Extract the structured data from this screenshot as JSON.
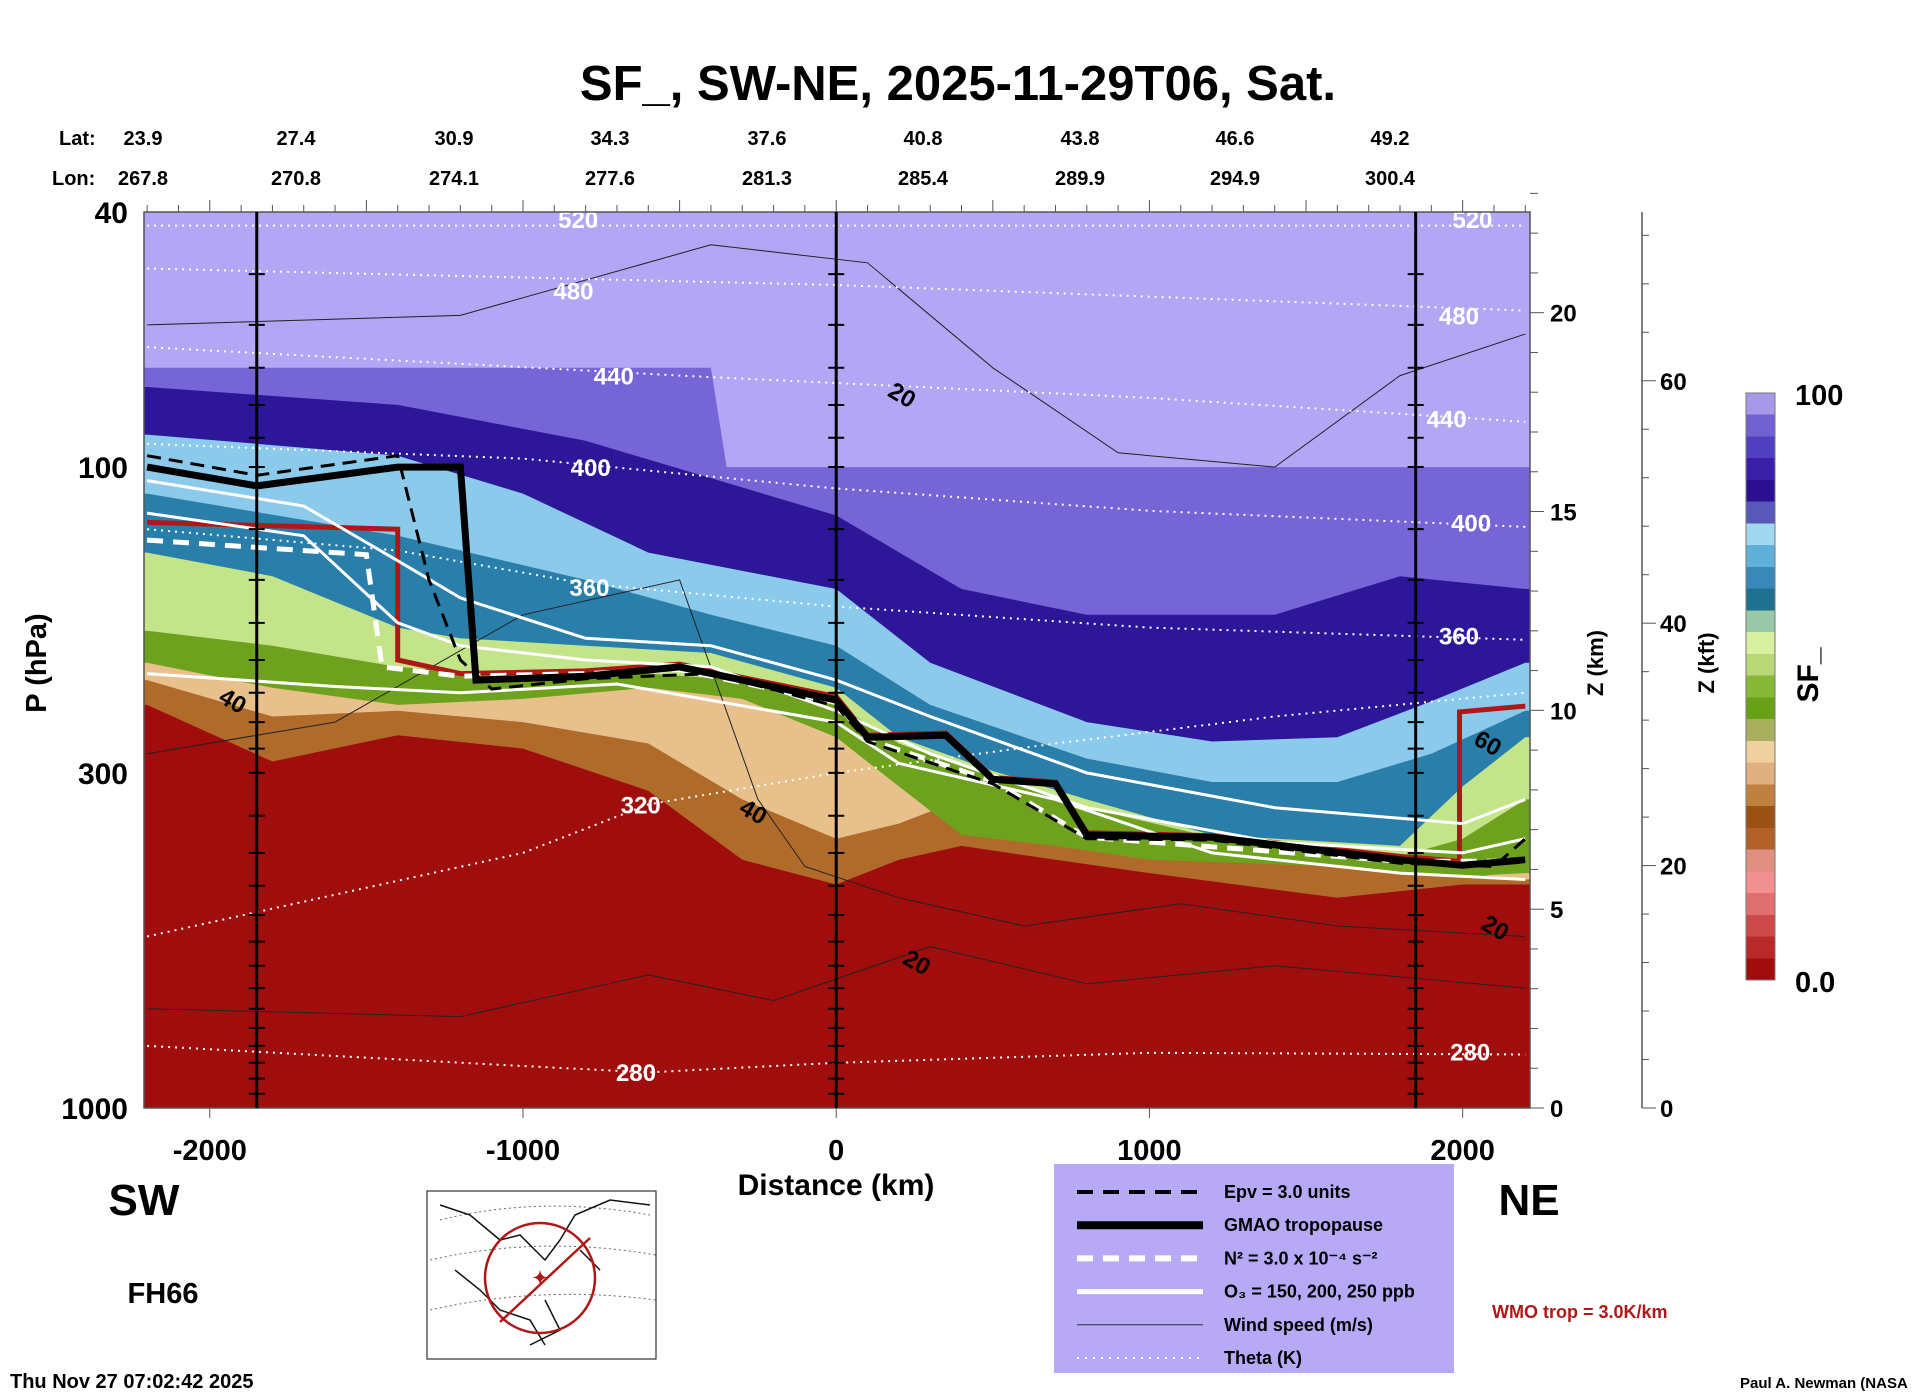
{
  "chart_data": {
    "type": "heatmap",
    "title": "SF_, SW-NE, 2025-11-29T06, Sat.",
    "lat_label": "Lat:",
    "lon_label": "Lon:",
    "lats": [
      "23.9",
      "27.4",
      "30.9",
      "34.3",
      "37.6",
      "40.8",
      "43.8",
      "46.6",
      "49.2"
    ],
    "lons": [
      "267.8",
      "270.8",
      "274.1",
      "277.6",
      "281.3",
      "285.4",
      "289.9",
      "294.9",
      "300.4"
    ],
    "xlabel": "Distance (km)",
    "ylabel": "P (hPa)",
    "xlim": [
      -2210,
      2215
    ],
    "ylim": [
      1000,
      40
    ],
    "xticks": [
      "-2000",
      "-1000",
      "0",
      "1000",
      "2000"
    ],
    "xtick_values": [
      -2000,
      -1000,
      0,
      1000,
      2000
    ],
    "yticks": [
      "40",
      "100",
      "300",
      "1000"
    ],
    "ytick_values": [
      40,
      100,
      300,
      1000
    ],
    "z_km_label": "Z (km)",
    "z_km_ticks": [
      "0",
      "5",
      "10",
      "15",
      "20"
    ],
    "z_km_values": [
      0,
      5,
      10,
      15,
      20
    ],
    "z_kft_label": "Z (kft)",
    "z_kft_ticks": [
      "0",
      "20",
      "40",
      "60"
    ],
    "z_kft_values": [
      0,
      20,
      40,
      60
    ],
    "section_lines_km": [
      -1850,
      0,
      1850
    ],
    "left_dir": "SW",
    "right_dir": "NE",
    "forecast_hour": "FH66",
    "colorbar": {
      "label": "SF_",
      "max_label": "100",
      "min_label": "0.0",
      "colors": [
        "#a00d0d",
        "#b82a2a",
        "#cc4a4a",
        "#e07070",
        "#f09090",
        "#e09080",
        "#b06028",
        "#9a5214",
        "#c08040",
        "#e0b080",
        "#f0d0a0",
        "#a8b060",
        "#68a018",
        "#88b838",
        "#b8d878",
        "#d8f0a0",
        "#98c8a8",
        "#207090",
        "#3a88b8",
        "#60b0d8",
        "#a0d8f0",
        "#5858b8",
        "#2a1090",
        "#3a20a8",
        "#5040c0",
        "#7060d0",
        "#a898e8"
      ]
    },
    "layers": [
      {
        "name": "brown",
        "color": "#b06a2a",
        "bottom": [
          [
            -2200,
            235
          ],
          [
            -1800,
            288
          ],
          [
            -1400,
            262
          ],
          [
            -1000,
            275
          ],
          [
            -600,
            320
          ],
          [
            -300,
            410
          ],
          [
            0,
            448
          ],
          [
            200,
            410
          ],
          [
            400,
            390
          ],
          [
            700,
            410
          ],
          [
            1000,
            430
          ],
          [
            1600,
            470
          ],
          [
            2000,
            448
          ],
          [
            2200,
            448
          ]
        ]
      },
      {
        "name": "tan",
        "color": "#e8c08c",
        "bottom": [
          [
            -2200,
            215
          ],
          [
            -1800,
            245
          ],
          [
            -1400,
            240
          ],
          [
            -1000,
            250
          ],
          [
            -600,
            270
          ],
          [
            -300,
            330
          ],
          [
            0,
            380
          ],
          [
            200,
            360
          ],
          [
            400,
            330
          ],
          [
            700,
            380
          ],
          [
            1000,
            400
          ],
          [
            1600,
            420
          ],
          [
            2000,
            430
          ],
          [
            2200,
            440
          ]
        ]
      },
      {
        "name": "green",
        "color": "#6ea21e",
        "bottom": [
          [
            -2200,
            202
          ],
          [
            -1800,
            221
          ],
          [
            -1400,
            235
          ],
          [
            -1000,
            230
          ],
          [
            -600,
            221
          ],
          [
            -300,
            230
          ],
          [
            0,
            264
          ],
          [
            200,
            315
          ],
          [
            400,
            375
          ],
          [
            700,
            390
          ],
          [
            1000,
            410
          ],
          [
            1600,
            420
          ],
          [
            2000,
            435
          ],
          [
            2200,
            430
          ]
        ]
      },
      {
        "name": "light-green",
        "color": "#c4e48a",
        "bottom": [
          [
            -2200,
            180
          ],
          [
            -1800,
            190
          ],
          [
            -1400,
            205
          ],
          [
            -1000,
            212
          ],
          [
            -600,
            210
          ],
          [
            -300,
            215
          ],
          [
            0,
            235
          ],
          [
            200,
            270
          ],
          [
            500,
            305
          ],
          [
            800,
            340
          ],
          [
            1200,
            378
          ],
          [
            1800,
            405
          ],
          [
            2000,
            380
          ],
          [
            2200,
            330
          ]
        ]
      },
      {
        "name": "teal",
        "color": "#2a7eaa",
        "bottom": [
          [
            -2200,
            136
          ],
          [
            -1800,
            148
          ],
          [
            -1400,
            178
          ],
          [
            -1200,
            185
          ],
          [
            -800,
            190
          ],
          [
            -400,
            195
          ],
          [
            0,
            221
          ],
          [
            200,
            264
          ],
          [
            500,
            298
          ],
          [
            800,
            330
          ],
          [
            1200,
            375
          ],
          [
            1800,
            390
          ],
          [
            2000,
            315
          ],
          [
            2200,
            264
          ]
        ]
      },
      {
        "name": "light-blue",
        "color": "#8ccaec",
        "bottom": [
          [
            -2200,
            110
          ],
          [
            -1400,
            128
          ],
          [
            -800,
            150
          ],
          [
            -400,
            170
          ],
          [
            0,
            190
          ],
          [
            300,
            235
          ],
          [
            800,
            285
          ],
          [
            1200,
            310
          ],
          [
            1600,
            310
          ],
          [
            1900,
            280
          ],
          [
            2200,
            240
          ]
        ]
      },
      {
        "name": "navy",
        "color": "#2e1698",
        "bottom": [
          [
            -2200,
            89
          ],
          [
            -1400,
            96
          ],
          [
            -1000,
            110
          ],
          [
            -600,
            136
          ],
          [
            0,
            155
          ],
          [
            300,
            202
          ],
          [
            800,
            250
          ],
          [
            1200,
            268
          ],
          [
            1600,
            264
          ],
          [
            1900,
            232
          ],
          [
            2200,
            202
          ]
        ]
      },
      {
        "name": "purple",
        "color": "#7565d6",
        "bottom": [
          [
            -2200,
            75
          ],
          [
            -1400,
            80
          ],
          [
            -800,
            91
          ],
          [
            0,
            119
          ],
          [
            400,
            155
          ],
          [
            800,
            170
          ],
          [
            1400,
            170
          ],
          [
            1800,
            148
          ],
          [
            2200,
            155
          ]
        ]
      },
      {
        "name": "lavender",
        "color": "#b3a6f4",
        "bottom": [
          [
            -2200,
            70
          ],
          [
            -400,
            70
          ],
          [
            -350,
            100
          ],
          [
            2200,
            100
          ]
        ]
      }
    ],
    "theta_lines": [
      {
        "level": 520,
        "points": [
          [
            -2200,
            42
          ],
          [
            2200,
            42
          ]
        ]
      },
      {
        "level": 480,
        "points": [
          [
            -2200,
            49
          ],
          [
            0,
            52
          ],
          [
            2200,
            57
          ]
        ]
      },
      {
        "level": 440,
        "points": [
          [
            -2200,
            65
          ],
          [
            -500,
            72
          ],
          [
            1000,
            78
          ],
          [
            2200,
            85
          ]
        ]
      },
      {
        "level": 400,
        "points": [
          [
            -2200,
            92
          ],
          [
            -1000,
            97
          ],
          [
            0,
            108
          ],
          [
            1000,
            117
          ],
          [
            2200,
            124
          ]
        ]
      },
      {
        "level": 360,
        "points": [
          [
            -2200,
            125
          ],
          [
            -1400,
            135
          ],
          [
            -800,
            152
          ],
          [
            0,
            165
          ],
          [
            1000,
            178
          ],
          [
            2200,
            186
          ]
        ]
      },
      {
        "level": 320,
        "points": [
          [
            -2200,
            540
          ],
          [
            -1000,
            400
          ],
          [
            -600,
            336
          ],
          [
            0,
            300
          ],
          [
            700,
            270
          ],
          [
            1400,
            245
          ],
          [
            2200,
            225
          ]
        ]
      },
      {
        "level": 280,
        "points": [
          [
            -2200,
            800
          ],
          [
            -1000,
            860
          ],
          [
            -600,
            880
          ],
          [
            0,
            850
          ],
          [
            1000,
            820
          ],
          [
            2200,
            825
          ]
        ]
      }
    ],
    "theta_labels": [
      {
        "text": "520",
        "x": -824,
        "p": 41
      },
      {
        "text": "520",
        "x": 2031,
        "p": 41
      },
      {
        "text": "480",
        "x": -839,
        "p": 53
      },
      {
        "text": "480",
        "x": 1988,
        "p": 58
      },
      {
        "text": "440",
        "x": -710,
        "p": 72
      },
      {
        "text": "440",
        "x": 1949,
        "p": 84
      },
      {
        "text": "400",
        "x": -784,
        "p": 100
      },
      {
        "text": "400",
        "x": 2027,
        "p": 122
      },
      {
        "text": "360",
        "x": -788,
        "p": 154
      },
      {
        "text": "360",
        "x": 1988,
        "p": 183
      },
      {
        "text": "320",
        "x": -624,
        "p": 336
      },
      {
        "text": "280",
        "x": -639,
        "p": 879
      },
      {
        "text": "280",
        "x": 2024,
        "p": 817
      }
    ],
    "wind_lines": [
      [
        [
          -2200,
          60
        ],
        [
          -1200,
          58
        ],
        [
          -400,
          45
        ],
        [
          100,
          48
        ],
        [
          500,
          70
        ],
        [
          900,
          95
        ],
        [
          1400,
          100
        ],
        [
          1800,
          72
        ],
        [
          2200,
          62
        ]
      ],
      [
        [
          -2200,
          280
        ],
        [
          -1600,
          250
        ],
        [
          -1000,
          170
        ],
        [
          -500,
          150
        ],
        [
          -250,
          330
        ],
        [
          -100,
          420
        ],
        [
          200,
          470
        ],
        [
          600,
          520
        ],
        [
          1100,
          480
        ],
        [
          1600,
          520
        ],
        [
          2200,
          540
        ]
      ],
      [
        [
          -2200,
          700
        ],
        [
          -1200,
          720
        ],
        [
          -600,
          620
        ],
        [
          -200,
          680
        ],
        [
          300,
          560
        ],
        [
          800,
          640
        ],
        [
          1400,
          600
        ],
        [
          2200,
          650
        ]
      ]
    ],
    "wind_labels": [
      {
        "text": "20",
        "x": 212,
        "p": 77
      },
      {
        "text": "40",
        "x": -1925,
        "p": 231
      },
      {
        "text": "40",
        "x": -263,
        "p": 344
      },
      {
        "text": "20",
        "x": 259,
        "p": 591
      },
      {
        "text": "20",
        "x": 2106,
        "p": 522
      },
      {
        "text": "60",
        "x": 2082,
        "p": 269
      }
    ],
    "gmao_tropopause": [
      [
        -2200,
        100
      ],
      [
        -1850,
        107
      ],
      [
        -1400,
        100
      ],
      [
        -1200,
        100
      ],
      [
        -1150,
        215
      ],
      [
        -800,
        212
      ],
      [
        -500,
        205
      ],
      [
        -300,
        215
      ],
      [
        0,
        231
      ],
      [
        100,
        264
      ],
      [
        350,
        262
      ],
      [
        500,
        307
      ],
      [
        700,
        312
      ],
      [
        800,
        375
      ],
      [
        1200,
        378
      ],
      [
        1800,
        410
      ],
      [
        2000,
        418
      ],
      [
        2200,
        410
      ]
    ],
    "wmo_tropopause": [
      [
        -2200,
        122
      ],
      [
        -1400,
        125
      ],
      [
        -1400,
        200
      ],
      [
        -1200,
        210
      ],
      [
        -800,
        208
      ],
      [
        -500,
        203
      ],
      [
        -300,
        213
      ],
      [
        0,
        228
      ],
      [
        100,
        262
      ],
      [
        350,
        260
      ],
      [
        500,
        305
      ],
      [
        700,
        310
      ],
      [
        800,
        372
      ],
      [
        1200,
        376
      ],
      [
        1800,
        405
      ],
      [
        1990,
        412
      ],
      [
        1990,
        241
      ],
      [
        2200,
        236
      ]
    ],
    "n2_line": [
      [
        -2200,
        130
      ],
      [
        -1500,
        137
      ],
      [
        -1450,
        205
      ],
      [
        -1200,
        212
      ],
      [
        -800,
        210
      ],
      [
        -500,
        207
      ],
      [
        0,
        233
      ],
      [
        100,
        266
      ],
      [
        500,
        309
      ],
      [
        800,
        378
      ],
      [
        1800,
        412
      ],
      [
        2200,
        412
      ]
    ],
    "epv_line": [
      [
        -2200,
        96
      ],
      [
        -1850,
        103
      ],
      [
        -1400,
        96
      ],
      [
        -1300,
        150
      ],
      [
        -1200,
        200
      ],
      [
        -1100,
        222
      ],
      [
        -800,
        214
      ],
      [
        -400,
        210
      ],
      [
        0,
        236
      ],
      [
        100,
        268
      ],
      [
        500,
        312
      ],
      [
        800,
        380
      ],
      [
        1200,
        382
      ],
      [
        1800,
        415
      ],
      [
        2100,
        420
      ],
      [
        2200,
        380
      ]
    ],
    "o3_lines": [
      [
        [
          -2200,
          105
        ],
        [
          -1700,
          115
        ],
        [
          -1400,
          140
        ],
        [
          -1200,
          160
        ],
        [
          -800,
          185
        ],
        [
          -400,
          190
        ],
        [
          0,
          215
        ],
        [
          300,
          245
        ],
        [
          800,
          300
        ],
        [
          1400,
          340
        ],
        [
          2000,
          360
        ],
        [
          2200,
          330
        ]
      ],
      [
        [
          -2200,
          118
        ],
        [
          -1700,
          128
        ],
        [
          -1400,
          175
        ],
        [
          -1200,
          190
        ],
        [
          -800,
          200
        ],
        [
          -400,
          205
        ],
        [
          0,
          240
        ],
        [
          300,
          280
        ],
        [
          800,
          340
        ],
        [
          1400,
          385
        ],
        [
          2000,
          400
        ],
        [
          2200,
          380
        ]
      ],
      [
        [
          -2200,
          210
        ],
        [
          -1600,
          220
        ],
        [
          -1200,
          225
        ],
        [
          -700,
          218
        ],
        [
          0,
          250
        ],
        [
          200,
          290
        ],
        [
          700,
          330
        ],
        [
          1200,
          400
        ],
        [
          1800,
          430
        ],
        [
          2200,
          440
        ]
      ]
    ],
    "legend": {
      "items": [
        {
          "label": "Epv = 3.0 units",
          "style": "black-dashed"
        },
        {
          "label": "GMAO tropopause",
          "style": "black-thick"
        },
        {
          "label": "N² = 3.0 x 10⁻⁴ s⁻²",
          "style": "white-dashed"
        },
        {
          "label": "O₃ = 150, 200, 250 ppb",
          "style": "white-solid"
        },
        {
          "label": "Wind speed (m/s)",
          "style": "thin-black"
        },
        {
          "label": "Theta (K)",
          "style": "white-dotted"
        }
      ],
      "wmo_label": "WMO trop = 3.0K/km",
      "wmo_color": "#b01818",
      "background": "#b8a9f6"
    },
    "timestamp": "Thu Nov 27 07:02:42 2025",
    "credit": "Paul A. Newman (NASA"
  }
}
